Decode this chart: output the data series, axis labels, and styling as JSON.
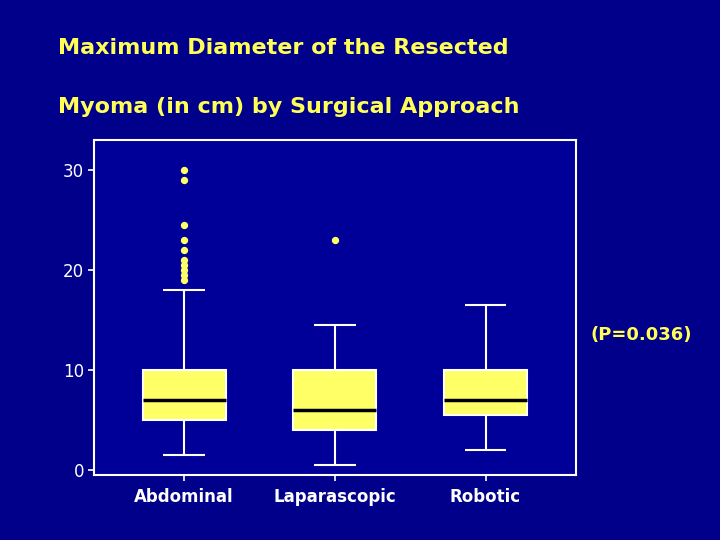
{
  "title_line1": "Maximum Diameter of the Resected",
  "title_line2": "Myoma (in cm) by Surgical Approach",
  "title_color": "#FFFF55",
  "background_color": "#00008B",
  "plot_bg_color": "#000099",
  "box_color": "#FFFF66",
  "box_edge_color": "white",
  "median_color": "black",
  "whisker_color": "white",
  "cap_color": "white",
  "flier_color": "#FFFF66",
  "annotation": "(P=0.036)",
  "annotation_color": "#FFFF55",
  "categories": [
    "Abdominal",
    "Laparascopic",
    "Robotic"
  ],
  "yticks": [
    0,
    10,
    20,
    30
  ],
  "ylim": [
    -0.5,
    33
  ],
  "box_data": {
    "Abdominal": {
      "q1": 5.0,
      "median": 7.0,
      "q3": 10.0,
      "whisker_low": 1.5,
      "whisker_high": 18.0,
      "fliers": [
        19.0,
        19.5,
        20.0,
        20.5,
        21.0,
        22.0,
        23.0,
        24.5,
        29.0,
        30.0
      ]
    },
    "Laparascopic": {
      "q1": 4.0,
      "median": 6.0,
      "q3": 10.0,
      "whisker_low": 0.5,
      "whisker_high": 14.5,
      "fliers": [
        23.0
      ]
    },
    "Robotic": {
      "q1": 5.5,
      "median": 7.0,
      "q3": 10.0,
      "whisker_low": 2.0,
      "whisker_high": 16.5,
      "fliers": []
    }
  }
}
